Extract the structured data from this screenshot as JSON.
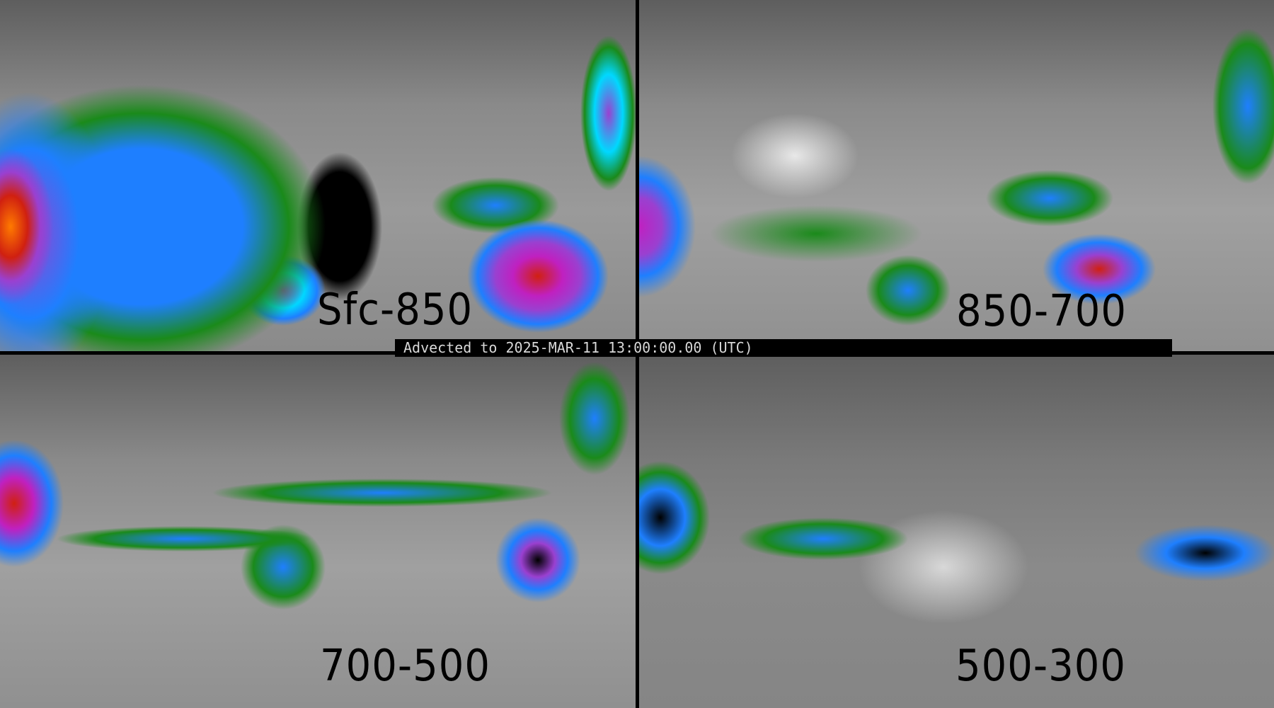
{
  "banner": {
    "text": "Advected to 2025-MAR-11 13:00:00.00 (UTC)"
  },
  "panels": [
    {
      "label": "Sfc-850"
    },
    {
      "label": "850-700"
    },
    {
      "label": "700-500"
    },
    {
      "label": "500-300"
    }
  ],
  "colors": {
    "background_gray": "#6a6a6a",
    "light": "#e0e0e0",
    "green": "#1a8a1a",
    "blue": "#1e7fff",
    "cyan": "#00d8ff",
    "purple": "#9a40d0",
    "magenta": "#c020c0",
    "red": "#d02010",
    "orange": "#ff7a00",
    "black": "#000000"
  }
}
